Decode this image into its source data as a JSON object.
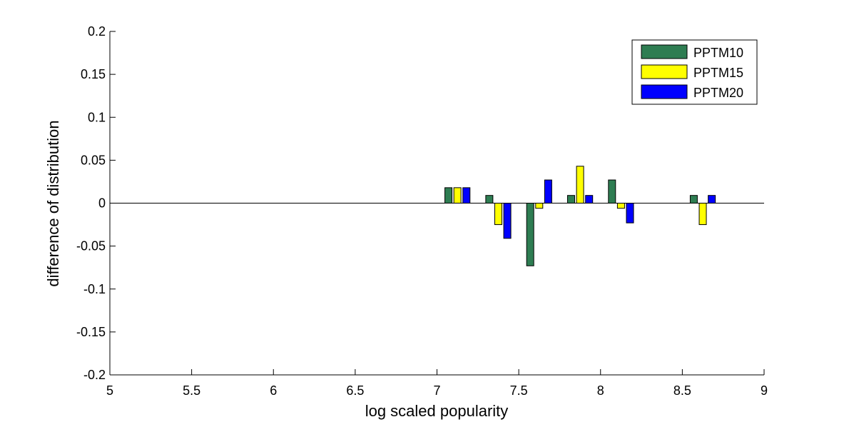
{
  "chart_data": {
    "type": "bar",
    "xlabel": "log scaled popularity",
    "ylabel": "difference of distribution",
    "xlim": [
      5,
      9
    ],
    "ylim": [
      -0.2,
      0.2
    ],
    "x_ticks": [
      "5",
      "5.5",
      "6",
      "6.5",
      "7",
      "7.5",
      "8",
      "8.5",
      "9"
    ],
    "y_ticks": [
      "0.2",
      "0.15",
      "0.1",
      "0.05",
      "0",
      "-0.05",
      "-0.1",
      "-0.15",
      "-0.2"
    ],
    "x": [
      7.125,
      7.375,
      7.625,
      7.875,
      8.125,
      8.625
    ],
    "series": [
      {
        "name": "PPTM10",
        "color": "#2e7d52",
        "values": [
          0.018,
          0.009,
          -0.073,
          0.009,
          0.027,
          0.009
        ]
      },
      {
        "name": "PPTM15",
        "color": "#ffff00",
        "values": [
          0.018,
          -0.025,
          -0.006,
          0.043,
          -0.006,
          -0.025
        ]
      },
      {
        "name": "PPTM20",
        "color": "#0000ff",
        "values": [
          0.018,
          -0.041,
          0.027,
          0.009,
          -0.023,
          0.009
        ]
      }
    ],
    "legend_position": "top-right",
    "grid": false
  }
}
